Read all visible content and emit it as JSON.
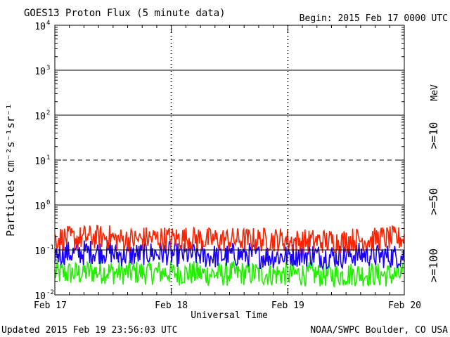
{
  "title": "GOES13 Proton Flux (5 minute data)",
  "begin_label": "Begin: 2015 Feb 17 0000 UTC",
  "footer_left": "Updated 2015 Feb 19 23:56:03 UTC",
  "footer_right": "NOAA/SWPC Boulder, CO USA",
  "colors": {
    "ge10": "#ff2200",
    "ge50": "#1a00ff",
    "ge100": "#22ee00"
  },
  "chart_data": {
    "type": "line",
    "title": "GOES13 Proton Flux (5 minute data)",
    "xlabel": "Universal Time",
    "ylabel": "Particles cm⁻²s⁻¹sr⁻¹",
    "yscale": "log",
    "ylim": [
      0.01,
      10000
    ],
    "xlim_days": [
      0,
      3
    ],
    "x_ticks": [
      {
        "label": "Feb 17",
        "day": 0
      },
      {
        "label": "Feb 18",
        "day": 1
      },
      {
        "label": "Feb 19",
        "day": 2
      },
      {
        "label": "Feb 20",
        "day": 3
      }
    ],
    "y_ticks": [
      {
        "base": "10",
        "exp": "-2",
        "value": 0.01
      },
      {
        "base": "10",
        "exp": "-1",
        "value": 0.1
      },
      {
        "base": "10",
        "exp": "0",
        "value": 1
      },
      {
        "base": "10",
        "exp": "1",
        "value": 10
      },
      {
        "base": "10",
        "exp": "2",
        "value": 100
      },
      {
        "base": "10",
        "exp": "3",
        "value": 1000
      },
      {
        "base": "10",
        "exp": "4",
        "value": 10000
      }
    ],
    "reference_lines": [
      {
        "value": 10,
        "style": "dashed"
      },
      {
        "value": 1000,
        "style": "solid"
      },
      {
        "value": 100,
        "style": "solid"
      },
      {
        "value": 1,
        "style": "solid"
      },
      {
        "value": 0.1,
        "style": "solid"
      }
    ],
    "unit_label": "MeV",
    "series": [
      {
        "name": ">=10",
        "color": "#ff2200",
        "segments": [
          {
            "day_start": 0.0,
            "value": 0.15
          },
          {
            "day_start": 0.25,
            "value": 0.16
          },
          {
            "day_start": 0.5,
            "value": 0.14
          },
          {
            "day_start": 0.75,
            "value": 0.15
          },
          {
            "day_start": 1.0,
            "value": 0.15
          },
          {
            "day_start": 1.25,
            "value": 0.14
          },
          {
            "day_start": 1.5,
            "value": 0.14
          },
          {
            "day_start": 1.75,
            "value": 0.14
          },
          {
            "day_start": 2.0,
            "value": 0.13
          },
          {
            "day_start": 2.25,
            "value": 0.13
          },
          {
            "day_start": 2.5,
            "value": 0.14
          },
          {
            "day_start": 2.75,
            "value": 0.15
          }
        ]
      },
      {
        "name": ">=50",
        "color": "#1a00ff",
        "segments": [
          {
            "day_start": 0.0,
            "value": 0.07
          },
          {
            "day_start": 0.25,
            "value": 0.075
          },
          {
            "day_start": 0.5,
            "value": 0.065
          },
          {
            "day_start": 0.75,
            "value": 0.07
          },
          {
            "day_start": 1.0,
            "value": 0.065
          },
          {
            "day_start": 1.25,
            "value": 0.06
          },
          {
            "day_start": 1.5,
            "value": 0.065
          },
          {
            "day_start": 1.75,
            "value": 0.06
          },
          {
            "day_start": 2.0,
            "value": 0.065
          },
          {
            "day_start": 2.25,
            "value": 0.06
          },
          {
            "day_start": 2.5,
            "value": 0.065
          },
          {
            "day_start": 2.75,
            "value": 0.06
          }
        ]
      },
      {
        "name": ">=100",
        "color": "#22ee00",
        "segments": [
          {
            "day_start": 0.0,
            "value": 0.025
          },
          {
            "day_start": 0.25,
            "value": 0.027
          },
          {
            "day_start": 0.5,
            "value": 0.026
          },
          {
            "day_start": 0.75,
            "value": 0.026
          },
          {
            "day_start": 1.0,
            "value": 0.025
          },
          {
            "day_start": 1.25,
            "value": 0.024
          },
          {
            "day_start": 1.5,
            "value": 0.025
          },
          {
            "day_start": 1.75,
            "value": 0.024
          },
          {
            "day_start": 2.0,
            "value": 0.024
          },
          {
            "day_start": 2.25,
            "value": 0.023
          },
          {
            "day_start": 2.5,
            "value": 0.024
          },
          {
            "day_start": 2.75,
            "value": 0.023
          }
        ]
      }
    ],
    "grid": false,
    "legend_placement": "right, vertical"
  }
}
